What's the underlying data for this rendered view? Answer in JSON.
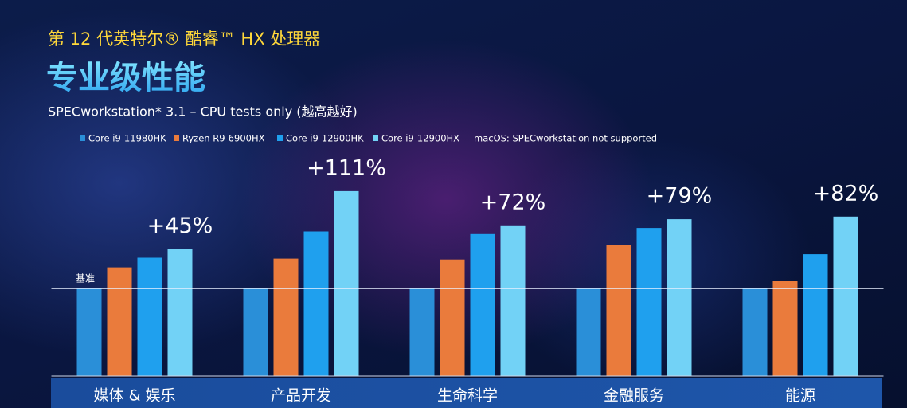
{
  "chart_data": {
    "type": "bar",
    "supertitle": "第 12 代英特尔® 酷睿™ HX 处理器",
    "title": "专业级性能",
    "subtitle": "SPECworkstation* 3.1 – CPU tests only (越高越好)",
    "note": "macOS: SPECworkstation not supported",
    "categories": [
      "媒体 & 娱乐",
      "产品开发",
      "生命科学",
      "金融服务",
      "能源"
    ],
    "series": [
      {
        "name": "Core i9-11980HK",
        "color": "#2a8fd8",
        "values": [
          1,
          1,
          1,
          1,
          1
        ]
      },
      {
        "name": "Ryzen R9-6900HX",
        "color": "#ea7b3c",
        "values": [
          1.24,
          1.34,
          1.33,
          1.5,
          1.09
        ]
      },
      {
        "name": "Core i9-12900HK",
        "color": "#1fa0ee",
        "values": [
          1.35,
          1.65,
          1.62,
          1.69,
          1.39
        ]
      },
      {
        "name": "Core i9-12900HX",
        "color": "#72d2f6",
        "values": [
          1.45,
          2.11,
          1.72,
          1.79,
          1.82
        ],
        "value_labels": [
          "+45%",
          "+111%",
          "+72%",
          "+79%",
          "+82%"
        ]
      }
    ],
    "baseline": {
      "value": 1,
      "label": "基准"
    },
    "ylim": [
      0,
      2.5
    ]
  }
}
